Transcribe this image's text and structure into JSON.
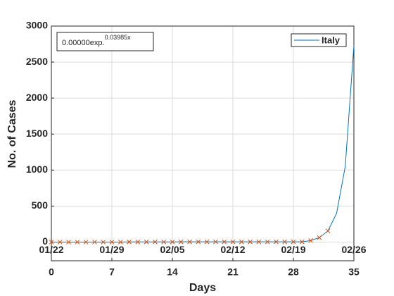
{
  "chart_data": {
    "type": "line",
    "xlabel": "Days",
    "ylabel": "No. of Cases",
    "annotation": {
      "base": "0.00000exp.",
      "exponent": "0.03985x"
    },
    "x": [
      0,
      1,
      2,
      3,
      4,
      5,
      6,
      7,
      8,
      9,
      10,
      11,
      12,
      13,
      14,
      15,
      16,
      17,
      18,
      19,
      20,
      21,
      22,
      23,
      24,
      25,
      26,
      27,
      28,
      29,
      30,
      31,
      32,
      33,
      34,
      35
    ],
    "series": [
      {
        "name": "Italy",
        "color": "#0072bd",
        "values": [
          0,
          0,
          0,
          0,
          0,
          0,
          0,
          0,
          0,
          2,
          2,
          2,
          2,
          2,
          2,
          3,
          3,
          3,
          3,
          3,
          3,
          3,
          3,
          3,
          3,
          3,
          3,
          3,
          3,
          3,
          20,
          62,
          155,
          400,
          1050,
          2730
        ]
      },
      {
        "color": "#d95319",
        "marker": "x",
        "x": [
          0,
          1,
          2,
          3,
          4,
          5,
          6,
          7,
          8,
          9,
          10,
          11,
          12,
          13,
          14,
          15,
          16,
          17,
          18,
          19,
          20,
          21,
          22,
          23,
          24,
          25,
          26,
          27,
          28,
          29,
          30,
          31,
          32
        ],
        "values": [
          0,
          0,
          0,
          0,
          0,
          0,
          0,
          0,
          0,
          2,
          2,
          2,
          2,
          2,
          2,
          3,
          3,
          3,
          3,
          3,
          3,
          3,
          3,
          3,
          3,
          3,
          3,
          3,
          3,
          3,
          20,
          62,
          155
        ]
      }
    ],
    "xlim": [
      0,
      35
    ],
    "xticks": [
      0,
      7,
      14,
      21,
      28,
      35
    ],
    "ylim": [
      -260,
      3000
    ],
    "yticks": [
      0,
      500,
      1000,
      1500,
      2000,
      2500,
      3000
    ],
    "date_labels": [
      {
        "value": 0,
        "label": "01/22"
      },
      {
        "value": 7,
        "label": "01/29"
      },
      {
        "value": 14,
        "label": "02/05"
      },
      {
        "value": 21,
        "label": "02/12"
      },
      {
        "value": 28,
        "label": "02/19"
      },
      {
        "value": 35,
        "label": "02/26"
      }
    ],
    "grid": true,
    "legend": "northeast"
  }
}
